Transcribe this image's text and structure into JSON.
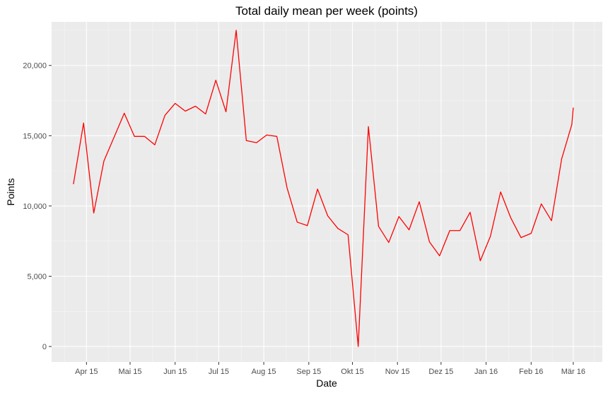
{
  "chart_data": {
    "type": "line",
    "title": "Total daily mean per week (points)",
    "xlabel": "Date",
    "ylabel": "Points",
    "ylim": [
      -1100,
      23100
    ],
    "xlim": [
      "2015-03-08",
      "2016-03-21"
    ],
    "grid": true,
    "legend": "none",
    "colors": {
      "line": "#ff0000",
      "panel": "#ebebeb",
      "grid_major": "#ffffff",
      "grid_minor": "#f5f5f5",
      "tick": "#333333"
    },
    "x_ticks": [
      {
        "date": "2015-04-01",
        "label": "Apr 15"
      },
      {
        "date": "2015-05-01",
        "label": "Mai 15"
      },
      {
        "date": "2015-06-01",
        "label": "Jun 15"
      },
      {
        "date": "2015-07-01",
        "label": "Jul 15"
      },
      {
        "date": "2015-08-01",
        "label": "Aug 15"
      },
      {
        "date": "2015-09-01",
        "label": "Sep 15"
      },
      {
        "date": "2015-10-01",
        "label": "Okt 15"
      },
      {
        "date": "2015-11-01",
        "label": "Nov 15"
      },
      {
        "date": "2015-12-01",
        "label": "Dez 15"
      },
      {
        "date": "2016-01-01",
        "label": "Jan 16"
      },
      {
        "date": "2016-02-01",
        "label": "Feb 16"
      },
      {
        "date": "2016-03-01",
        "label": "Mär 16"
      }
    ],
    "y_ticks": [
      {
        "value": 0,
        "label": "0"
      },
      {
        "value": 5000,
        "label": "5,000"
      },
      {
        "value": 10000,
        "label": "10,000"
      },
      {
        "value": 15000,
        "label": "15,000"
      },
      {
        "value": 20000,
        "label": "20,000"
      }
    ],
    "series": [
      {
        "x": [
          "2015-03-23",
          "2015-03-30",
          "2015-04-06",
          "2015-04-13",
          "2015-04-20",
          "2015-04-27",
          "2015-05-04",
          "2015-05-11",
          "2015-05-18",
          "2015-05-25",
          "2015-06-01",
          "2015-06-08",
          "2015-06-15",
          "2015-06-22",
          "2015-06-29",
          "2015-07-06",
          "2015-07-13",
          "2015-07-20",
          "2015-07-27",
          "2015-08-03",
          "2015-08-10",
          "2015-08-17",
          "2015-08-24",
          "2015-08-31",
          "2015-09-07",
          "2015-09-14",
          "2015-09-21",
          "2015-09-28",
          "2015-10-05",
          "2015-10-12",
          "2015-10-19",
          "2015-10-26",
          "2015-11-02",
          "2015-11-09",
          "2015-11-16",
          "2015-11-23",
          "2015-11-30",
          "2015-12-07",
          "2015-12-14",
          "2015-12-21",
          "2015-12-28",
          "2016-01-04",
          "2016-01-11",
          "2016-01-18",
          "2016-01-25",
          "2016-02-01",
          "2016-02-08",
          "2016-02-15",
          "2016-02-22",
          "2016-02-29",
          "2016-03-01"
        ],
        "values": [
          11550,
          15900,
          9500,
          13200,
          14900,
          16600,
          14950,
          14950,
          14350,
          16450,
          17300,
          16750,
          17100,
          16550,
          18950,
          16700,
          22500,
          14650,
          14500,
          15050,
          14950,
          11300,
          8850,
          8600,
          11200,
          9300,
          8400,
          7950,
          0,
          15650,
          8550,
          7400,
          9250,
          8300,
          10300,
          7450,
          6450,
          8250,
          8250,
          9550,
          6100,
          7850,
          11000,
          9150,
          7750,
          8050,
          10150,
          8950,
          13350,
          15800,
          17000
        ]
      }
    ]
  }
}
